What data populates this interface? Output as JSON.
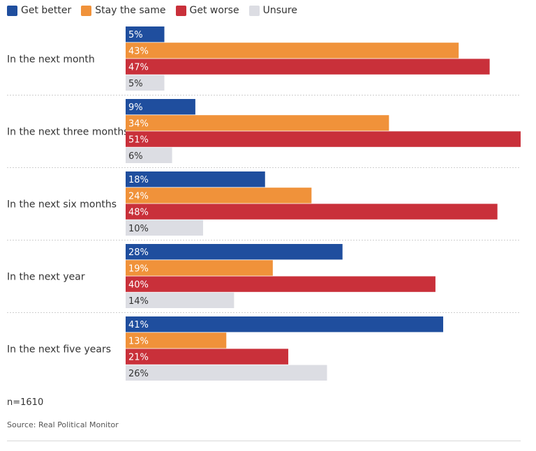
{
  "chart_data": {
    "type": "bar",
    "orientation": "horizontal",
    "categories": [
      "In the next month",
      "In the next three months",
      "In the next six months",
      "In the next year",
      "In the next five years"
    ],
    "series": [
      {
        "name": "Get better",
        "color": "#1f4e9e",
        "values": [
          5,
          9,
          18,
          28,
          41
        ],
        "labels": [
          "5%",
          "9%",
          "18%",
          "28%",
          "41%"
        ]
      },
      {
        "name": "Stay the same",
        "color": "#f0923a",
        "values": [
          43,
          34,
          24,
          19,
          13
        ],
        "labels": [
          "43%",
          "34%",
          "24%",
          "19%",
          "13%"
        ]
      },
      {
        "name": "Get worse",
        "color": "#c9303a",
        "values": [
          47,
          51,
          48,
          40,
          21
        ],
        "labels": [
          "47%",
          "51%",
          "48%",
          "40%",
          "21%"
        ]
      },
      {
        "name": "Unsure",
        "color": "#dcdde3",
        "values": [
          5,
          6,
          10,
          14,
          26
        ],
        "labels": [
          "5%",
          "6%",
          "10%",
          "14%",
          "26%"
        ]
      }
    ],
    "xlim": [
      0,
      51
    ],
    "grid": false,
    "legend": "top-left"
  },
  "note": "n=1610",
  "source": "Source: Real Political Monitor"
}
